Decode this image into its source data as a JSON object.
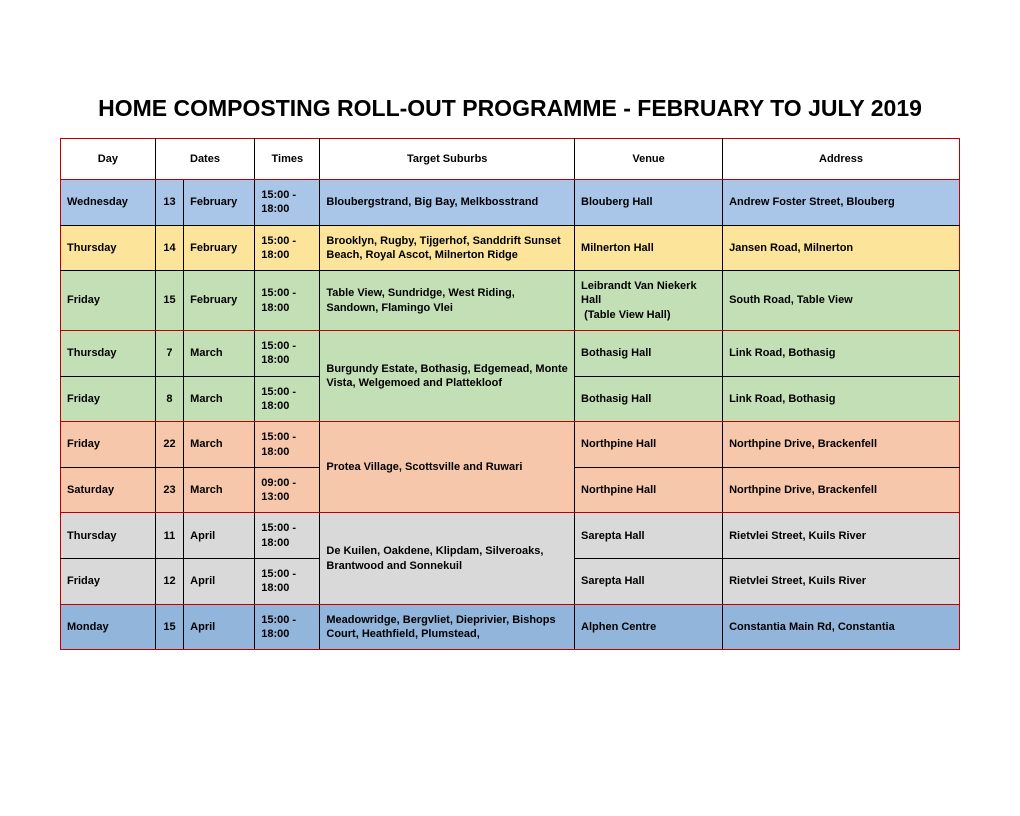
{
  "title": "HOME COMPOSTING ROLL-OUT PROGRAMME - FEBRUARY TO JULY 2019",
  "columns": {
    "day": "Day",
    "dates": "Dates",
    "times": "Times",
    "suburbs": "Target Suburbs",
    "venue": "Venue",
    "address": "Address"
  },
  "colors": {
    "blue": "#a9c5e8",
    "yellow": "#fce49a",
    "green": "#c3dfb5",
    "peach": "#f7c7ac",
    "gray": "#d9d9d9",
    "blue2": "#92b5db",
    "red_border": "#c00000",
    "black_border": "#000000",
    "white": "#ffffff"
  },
  "rows": [
    {
      "day": "Wednesday",
      "datenum": "13",
      "month": "February",
      "times": "15:00 - 18:00",
      "suburbs": "Bloubergstrand, Big Bay, Melkbosstrand",
      "venue": "Blouberg Hall",
      "address": "Andrew Foster Street, Blouberg",
      "bg": "blue",
      "top_border": "red_border",
      "bottom_border": "black_border"
    },
    {
      "day": "Thursday",
      "datenum": "14",
      "month": "February",
      "times": "15:00 - 18:00",
      "suburbs": "Brooklyn, Rugby, Tijgerhof, Sanddrift Sunset Beach, Royal Ascot, Milnerton Ridge",
      "venue": "Milnerton Hall",
      "address": "Jansen Road, Milnerton",
      "bg": "yellow",
      "top_border": "black_border",
      "bottom_border": "black_border"
    },
    {
      "day": "Friday",
      "datenum": "15",
      "month": "February",
      "times": "15:00 - 18:00",
      "suburbs": "Table View, Sundridge, West Riding, Sandown, Flamingo Vlei",
      "venue": "Leibrandt Van Niekerk Hall\n (Table View Hall)",
      "venue_html": "Leibrandt Van Niekerk Hall<br>&nbsp;(Table View Hall)",
      "address": "South Road, Table View",
      "bg": "green",
      "top_border": "black_border",
      "bottom_border": "red_border"
    },
    {
      "day": "Thursday",
      "datenum": "7",
      "month": "March",
      "times": "15:00 - 18:00",
      "suburbs_merged": true,
      "suburbs": "Burgundy Estate, Bothasig, Edgemead, Monte Vista, Welgemoed and Plattekloof",
      "venue": "Bothasig  Hall",
      "address": "Link Road, Bothasig",
      "bg": "green",
      "top_border": "red_border",
      "bottom_border": "black_border",
      "rowspan_suburbs": 2
    },
    {
      "day": "Friday",
      "datenum": "8",
      "month": "March",
      "times": "15:00 - 18:00",
      "suburbs_skip": true,
      "venue": "Bothasig  Hall",
      "address": "Link Road, Bothasig",
      "bg": "green",
      "top_border": "black_border",
      "bottom_border": "red_border"
    },
    {
      "day": "Friday",
      "datenum": "22",
      "month": "March",
      "times": "15:00 - 18:00",
      "suburbs_merged": true,
      "suburbs": "Protea Village, Scottsville and Ruwari",
      "venue": "Northpine Hall",
      "address": "Northpine Drive, Brackenfell",
      "bg": "peach",
      "top_border": "red_border",
      "bottom_border": "black_border",
      "rowspan_suburbs": 2
    },
    {
      "day": "Saturday",
      "datenum": "23",
      "month": "March",
      "times": "09:00 - 13:00",
      "suburbs_skip": true,
      "venue": "Northpine Hall",
      "address": "Northpine Drive, Brackenfell",
      "bg": "peach",
      "top_border": "black_border",
      "bottom_border": "red_border"
    },
    {
      "day": "Thursday",
      "datenum": "11",
      "month": "April",
      "times": "15:00 - 18:00",
      "suburbs_merged": true,
      "suburbs": "De Kuilen, Oakdene, Klipdam, Silveroaks, Brantwood and Sonnekuil",
      "venue": "Sarepta Hall",
      "address": "Rietvlei Street, Kuils River",
      "bg": "gray",
      "top_border": "red_border",
      "bottom_border": "black_border",
      "rowspan_suburbs": 2
    },
    {
      "day": "Friday",
      "datenum": "12",
      "month": "April",
      "times": "15:00 - 18:00",
      "suburbs_skip": true,
      "venue": "Sarepta Hall",
      "address": "Rietvlei Street, Kuils River",
      "bg": "gray",
      "top_border": "black_border",
      "bottom_border": "red_border"
    },
    {
      "day": "Monday",
      "datenum": "15",
      "month": "April",
      "times": "15:00 - 18:00",
      "suburbs": "Meadowridge, Bergvliet, Dieprivier, Bishops Court, Heathfield, Plumstead,",
      "venue": "Alphen Centre",
      "address": "Constantia Main Rd, Constantia",
      "bg": "blue2",
      "top_border": "red_border",
      "bottom_border": "red_border"
    }
  ]
}
